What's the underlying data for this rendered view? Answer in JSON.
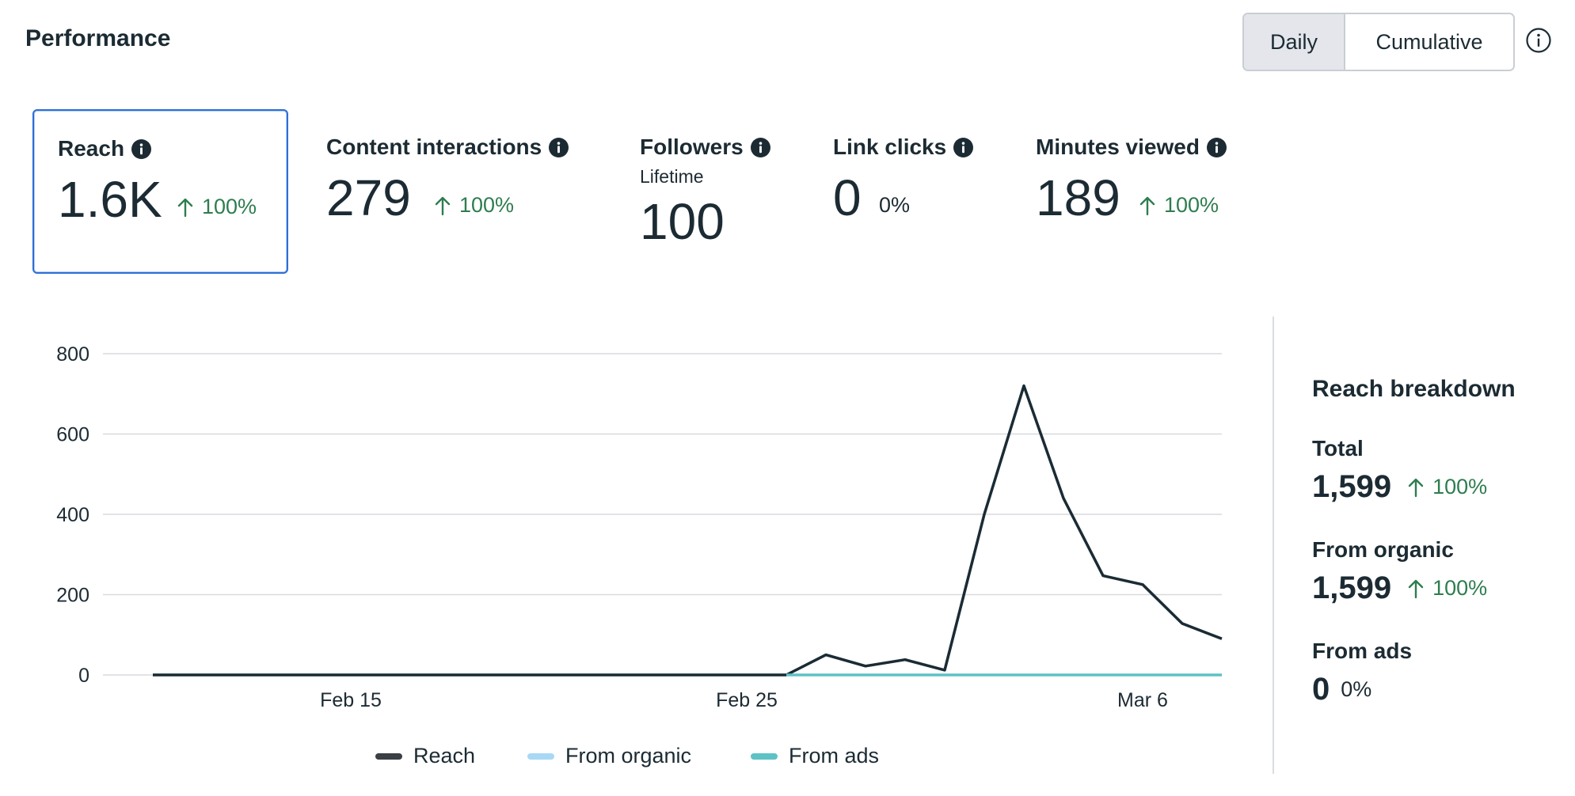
{
  "header": {
    "title": "Performance",
    "toggle": {
      "daily_label": "Daily",
      "cumulative_label": "Cumulative",
      "selected": "Daily"
    },
    "info_icon": "info-outline-icon"
  },
  "metrics": [
    {
      "label": "Reach",
      "value": "1.6K",
      "delta": "100%",
      "trend": "up",
      "selected": true
    },
    {
      "label": "Content interactions",
      "value": "279",
      "delta": "100%",
      "trend": "up"
    },
    {
      "label": "Followers",
      "sublabel": "Lifetime",
      "value": "100"
    },
    {
      "label": "Link clicks",
      "value": "0",
      "delta": "0%",
      "trend": "flat"
    },
    {
      "label": "Minutes viewed",
      "value": "189",
      "delta": "100%",
      "trend": "up"
    }
  ],
  "colors": {
    "reach": "#1c2b33",
    "organic": "#a8d8f5",
    "ads": "#5dc2c6",
    "positive": "#2e7d4f",
    "selected_border": "#2d6fd6"
  },
  "chart_data": {
    "type": "line",
    "title": "",
    "xlabel": "",
    "ylabel": "",
    "ylim": [
      0,
      800
    ],
    "yticks": [
      "800",
      "600",
      "400",
      "200",
      "0"
    ],
    "x_tick_labels": [
      {
        "label": "Feb 15",
        "day": 5
      },
      {
        "label": "Feb 25",
        "day": 15
      },
      {
        "label": "Mar 6",
        "day": 25
      }
    ],
    "x_days": [
      0,
      1,
      2,
      3,
      4,
      5,
      6,
      7,
      8,
      9,
      10,
      11,
      12,
      13,
      14,
      15,
      16,
      17,
      18,
      19,
      20,
      21,
      22,
      23,
      24,
      25,
      26,
      27
    ],
    "series": [
      {
        "name": "Reach",
        "values": [
          0,
          0,
          0,
          0,
          0,
          0,
          0,
          0,
          0,
          0,
          0,
          0,
          0,
          0,
          0,
          0,
          0,
          50,
          22,
          38,
          12,
          400,
          720,
          440,
          247,
          225,
          128,
          90
        ]
      },
      {
        "name": "From organic",
        "values": [
          0,
          0,
          0,
          0,
          0,
          0,
          0,
          0,
          0,
          0,
          0,
          0,
          0,
          0,
          0,
          0,
          0,
          50,
          22,
          38,
          12,
          400,
          720,
          440,
          247,
          225,
          128,
          90
        ]
      },
      {
        "name": "From ads",
        "values": [
          0,
          0,
          0,
          0,
          0,
          0,
          0,
          0,
          0,
          0,
          0,
          0,
          0,
          0,
          0,
          0,
          0,
          0,
          0,
          0,
          0,
          0,
          0,
          0,
          0,
          0,
          0,
          0
        ]
      }
    ],
    "legend": [
      "Reach",
      "From organic",
      "From ads"
    ],
    "grid": true
  },
  "breakdown": {
    "title": "Reach breakdown",
    "rows": [
      {
        "label": "Total",
        "value": "1,599",
        "delta": "100%",
        "trend": "up"
      },
      {
        "label": "From organic",
        "value": "1,599",
        "delta": "100%",
        "trend": "up"
      },
      {
        "label": "From ads",
        "value": "0",
        "delta": "0%",
        "trend": "flat"
      }
    ]
  }
}
